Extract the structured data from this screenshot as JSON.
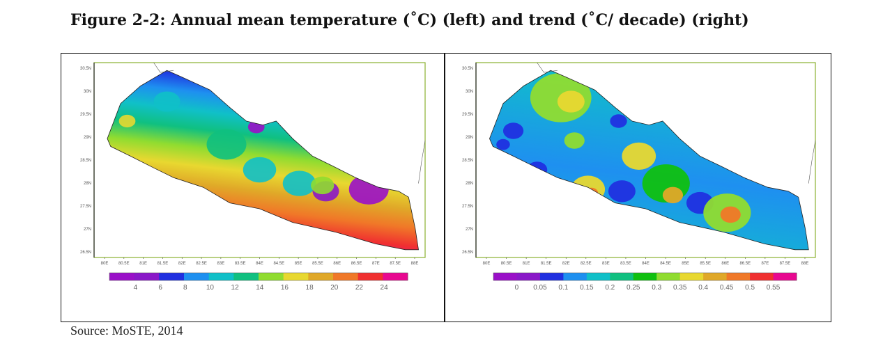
{
  "title": "Figure 2-2: Annual mean temperature (˚C) (left) and trend (˚C/ decade) (right)",
  "source": "Source: MoSTE, 2014",
  "maps": [
    {
      "name": "annual-mean-temperature",
      "x_ticks": [
        "80E",
        "80.5E",
        "81E",
        "81.5E",
        "82E",
        "82.5E",
        "83E",
        "83.5E",
        "84E",
        "84.5E",
        "85E",
        "85.5E",
        "86E",
        "86.5E",
        "87E",
        "87.5E",
        "88E"
      ],
      "y_ticks": [
        "30.5N",
        "30N",
        "29.5N",
        "29N",
        "28.5N",
        "28N",
        "27.5N",
        "27N",
        "26.5N"
      ],
      "colorbar_labels": [
        "4",
        "6",
        "8",
        "10",
        "12",
        "14",
        "16",
        "18",
        "20",
        "22",
        "24"
      ],
      "colorbar_colors": [
        "#9a10c8",
        "#8a18c8",
        "#2030e0",
        "#1e90f0",
        "#10c0c8",
        "#10c080",
        "#90dc30",
        "#e8d830",
        "#e0a828",
        "#f07828",
        "#f03030",
        "#e80890"
      ]
    },
    {
      "name": "temperature-trend",
      "x_ticks": [
        "80E",
        "80.5E",
        "81E",
        "81.5E",
        "82E",
        "82.5E",
        "83E",
        "83.5E",
        "84E",
        "84.5E",
        "85E",
        "85.5E",
        "86E",
        "86.5E",
        "87E",
        "87.5E",
        "88E"
      ],
      "y_ticks": [
        "30.5N",
        "30N",
        "29.5N",
        "29N",
        "28.5N",
        "28N",
        "27.5N",
        "27N",
        "26.5N"
      ],
      "colorbar_labels": [
        "0",
        "0.05",
        "0.1",
        "0.15",
        "0.2",
        "0.25",
        "0.3",
        "0.35",
        "0.4",
        "0.45",
        "0.5",
        "0.55"
      ],
      "colorbar_colors": [
        "#9a10c8",
        "#8a18c8",
        "#2030e0",
        "#1e90f0",
        "#10c0c8",
        "#10c080",
        "#10c010",
        "#90dc30",
        "#e8d830",
        "#e0a828",
        "#f07828",
        "#f03030",
        "#e80890"
      ]
    }
  ]
}
